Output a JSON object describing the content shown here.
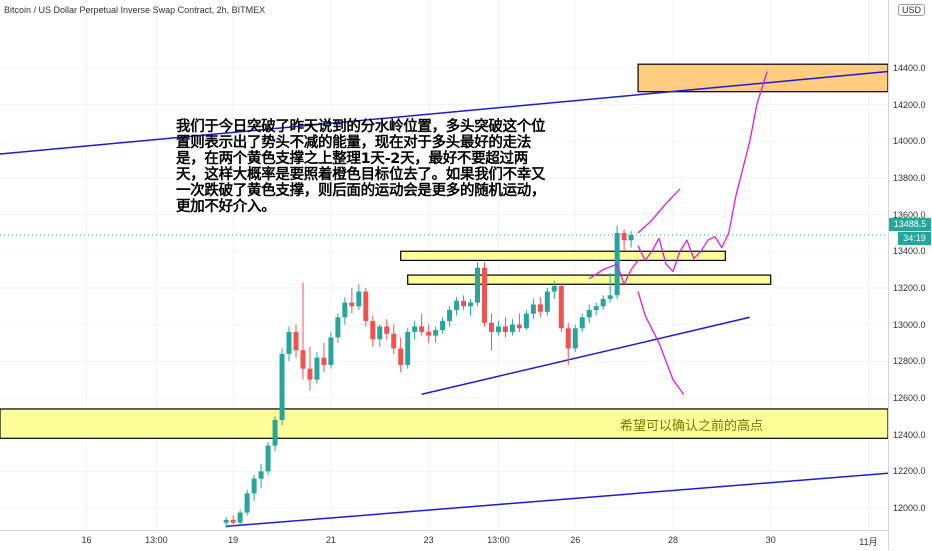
{
  "header": {
    "title": "Bitcoin / US Dollar Perpetual Inverse Swap Contract, 2h, BITMEX",
    "currency": "USD"
  },
  "price_axis": {
    "ticks": [
      "14400.0",
      "14200.0",
      "14000.0",
      "13800.0",
      "13600.0",
      "13400.0",
      "13200.0",
      "13000.0",
      "12800.0",
      "12600.0",
      "12400.0",
      "12200.0",
      "12000.0"
    ],
    "tick_values": [
      14400,
      14200,
      14000,
      13800,
      13600,
      13400,
      13200,
      13000,
      12800,
      12600,
      12400,
      12200,
      12000
    ],
    "last_price": "13488.5",
    "last_price_value": 13488.5,
    "countdown": "34:19",
    "last_price_color": "#26a69a",
    "ylim": [
      11880,
      14770
    ]
  },
  "time_axis": {
    "ticks": [
      "16",
      "13:00",
      "19",
      "21",
      "23",
      "13:00",
      "26",
      "28",
      "30",
      "11月"
    ],
    "tick_values": [
      0,
      10,
      21,
      35,
      49,
      59,
      70,
      84,
      98,
      112
    ],
    "xlim": [
      -12.4,
      114.8
    ]
  },
  "annotation": "我们于今日突破了昨天说到的分水岭位置，多头突破这个位置则表示出了势头不减的能量，现在对于多头最好的走法是，在两个黄色支撑之上整理1天-2天，最好不要超过两天，这样大概率是要照着橙色目标位去了。如果我们不幸又一次跌破了黄色支撑，则后面的运动会是更多的随机运动，更加不好介入。",
  "zone_label": "希望可以确认之前的高点",
  "colors": {
    "up": "#26a69a",
    "down": "#ef5350",
    "trendline": "#1a1ae6",
    "projection": "#e11ae1",
    "support_zone": "#ffff99",
    "target_zone": "#ffcc80"
  },
  "chart_data": {
    "type": "candlestick",
    "title": "Bitcoin / US Dollar Perpetual Inverse Swap Contract, 2h, BITMEX",
    "ylim": [
      11880,
      14770
    ],
    "candles": [
      {
        "o": 11920,
        "h": 11950,
        "l": 11890,
        "c": 11935
      },
      {
        "o": 11935,
        "h": 11960,
        "l": 11900,
        "c": 11920
      },
      {
        "o": 11920,
        "h": 11990,
        "l": 11905,
        "c": 11975
      },
      {
        "o": 11975,
        "h": 12100,
        "l": 11960,
        "c": 12080
      },
      {
        "o": 12080,
        "h": 12180,
        "l": 12040,
        "c": 12160
      },
      {
        "o": 12160,
        "h": 12240,
        "l": 12110,
        "c": 12200
      },
      {
        "o": 12200,
        "h": 12360,
        "l": 12180,
        "c": 12340
      },
      {
        "o": 12340,
        "h": 12500,
        "l": 12310,
        "c": 12480
      },
      {
        "o": 12480,
        "h": 12870,
        "l": 12450,
        "c": 12840
      },
      {
        "o": 12840,
        "h": 12990,
        "l": 12800,
        "c": 12960
      },
      {
        "o": 12960,
        "h": 13000,
        "l": 12820,
        "c": 12860
      },
      {
        "o": 12860,
        "h": 13230,
        "l": 12700,
        "c": 12760
      },
      {
        "o": 12760,
        "h": 12880,
        "l": 12640,
        "c": 12700
      },
      {
        "o": 12700,
        "h": 12850,
        "l": 12680,
        "c": 12820
      },
      {
        "o": 12820,
        "h": 12900,
        "l": 12740,
        "c": 12780
      },
      {
        "o": 12780,
        "h": 12960,
        "l": 12760,
        "c": 12930
      },
      {
        "o": 12930,
        "h": 13060,
        "l": 12900,
        "c": 13040
      },
      {
        "o": 13040,
        "h": 13150,
        "l": 13000,
        "c": 13120
      },
      {
        "o": 13120,
        "h": 13200,
        "l": 13060,
        "c": 13100
      },
      {
        "o": 13100,
        "h": 13220,
        "l": 13080,
        "c": 13180
      },
      {
        "o": 13180,
        "h": 13200,
        "l": 12990,
        "c": 13020
      },
      {
        "o": 13020,
        "h": 13050,
        "l": 12880,
        "c": 12920
      },
      {
        "o": 12920,
        "h": 13000,
        "l": 12880,
        "c": 12990
      },
      {
        "o": 12990,
        "h": 13030,
        "l": 12920,
        "c": 12950
      },
      {
        "o": 12950,
        "h": 13000,
        "l": 12840,
        "c": 12870
      },
      {
        "o": 12870,
        "h": 12930,
        "l": 12740,
        "c": 12780
      },
      {
        "o": 12780,
        "h": 12980,
        "l": 12760,
        "c": 12960
      },
      {
        "o": 12960,
        "h": 13020,
        "l": 12920,
        "c": 12990
      },
      {
        "o": 12990,
        "h": 13060,
        "l": 12940,
        "c": 12960
      },
      {
        "o": 12960,
        "h": 13000,
        "l": 12900,
        "c": 12940
      },
      {
        "o": 12940,
        "h": 12990,
        "l": 12900,
        "c": 12970
      },
      {
        "o": 12970,
        "h": 13040,
        "l": 12950,
        "c": 13020
      },
      {
        "o": 13020,
        "h": 13100,
        "l": 12990,
        "c": 13080
      },
      {
        "o": 13080,
        "h": 13150,
        "l": 13050,
        "c": 13130
      },
      {
        "o": 13130,
        "h": 13160,
        "l": 13080,
        "c": 13100
      },
      {
        "o": 13100,
        "h": 13140,
        "l": 13050,
        "c": 13120
      },
      {
        "o": 13120,
        "h": 13340,
        "l": 13100,
        "c": 13310
      },
      {
        "o": 13310,
        "h": 13340,
        "l": 12990,
        "c": 13010
      },
      {
        "o": 13010,
        "h": 13060,
        "l": 12860,
        "c": 12960
      },
      {
        "o": 12960,
        "h": 13020,
        "l": 12940,
        "c": 12990
      },
      {
        "o": 12990,
        "h": 13040,
        "l": 12930,
        "c": 12960
      },
      {
        "o": 12960,
        "h": 13030,
        "l": 12940,
        "c": 13000
      },
      {
        "o": 13000,
        "h": 13060,
        "l": 12960,
        "c": 12980
      },
      {
        "o": 12980,
        "h": 13080,
        "l": 12970,
        "c": 13060
      },
      {
        "o": 13060,
        "h": 13140,
        "l": 13030,
        "c": 13110
      },
      {
        "o": 13110,
        "h": 13150,
        "l": 13040,
        "c": 13070
      },
      {
        "o": 13070,
        "h": 13200,
        "l": 13050,
        "c": 13180
      },
      {
        "o": 13180,
        "h": 13240,
        "l": 13140,
        "c": 13210
      },
      {
        "o": 13210,
        "h": 13220,
        "l": 12960,
        "c": 12980
      },
      {
        "o": 12980,
        "h": 13010,
        "l": 12780,
        "c": 12870
      },
      {
        "o": 12870,
        "h": 13000,
        "l": 12850,
        "c": 12980
      },
      {
        "o": 12980,
        "h": 13060,
        "l": 12960,
        "c": 13040
      },
      {
        "o": 13040,
        "h": 13110,
        "l": 13010,
        "c": 13080
      },
      {
        "o": 13080,
        "h": 13120,
        "l": 13050,
        "c": 13100
      },
      {
        "o": 13100,
        "h": 13160,
        "l": 13080,
        "c": 13140
      },
      {
        "o": 13140,
        "h": 13280,
        "l": 13120,
        "c": 13160
      },
      {
        "o": 13160,
        "h": 13540,
        "l": 13140,
        "c": 13500
      },
      {
        "o": 13500,
        "h": 13520,
        "l": 13400,
        "c": 13460
      },
      {
        "o": 13460,
        "h": 13510,
        "l": 13420,
        "c": 13488.5
      }
    ],
    "trendlines": [
      {
        "x": [
          -12.4,
          114.8
        ],
        "y": [
          13930,
          14380
        ]
      },
      {
        "x": [
          20,
          115
        ],
        "y": [
          11900,
          12190
        ]
      },
      {
        "x": [
          48,
          95
        ],
        "y": [
          12620,
          13040
        ]
      }
    ],
    "target_zone": {
      "x": [
        79,
        114.8
      ],
      "y": [
        14270,
        14420
      ]
    },
    "support_zones": [
      {
        "x": [
          -12.4,
          114.8
        ],
        "y": [
          12380,
          12540
        ]
      },
      {
        "x": [
          46,
          98
        ],
        "y": [
          13220,
          13270
        ]
      },
      {
        "x": [
          45,
          91.5
        ],
        "y": [
          13350,
          13400
        ]
      }
    ],
    "projection_paths": [
      [
        [
          79,
          13500
        ],
        [
          81,
          13570
        ],
        [
          83,
          13660
        ],
        [
          85,
          13740
        ]
      ],
      [
        [
          79,
          13430
        ],
        [
          80,
          13350
        ],
        [
          81,
          13400
        ],
        [
          82,
          13470
        ],
        [
          83,
          13330
        ],
        [
          84,
          13290
        ],
        [
          85,
          13400
        ],
        [
          86,
          13460
        ],
        [
          87,
          13360
        ],
        [
          88,
          13400
        ],
        [
          89,
          13460
        ],
        [
          90,
          13480
        ],
        [
          91,
          13420
        ],
        [
          92,
          13500
        ],
        [
          93,
          13700
        ],
        [
          95,
          14000
        ],
        [
          96,
          14200
        ],
        [
          97.5,
          14380
        ]
      ],
      [
        [
          79,
          13180
        ],
        [
          80,
          13050
        ],
        [
          82,
          12900
        ],
        [
          84,
          12700
        ],
        [
          85.5,
          12620
        ]
      ],
      [
        [
          72,
          13250
        ],
        [
          74,
          13300
        ],
        [
          76,
          13330
        ],
        [
          77,
          13220
        ],
        [
          78,
          13300
        ],
        [
          79,
          13350
        ]
      ]
    ]
  }
}
